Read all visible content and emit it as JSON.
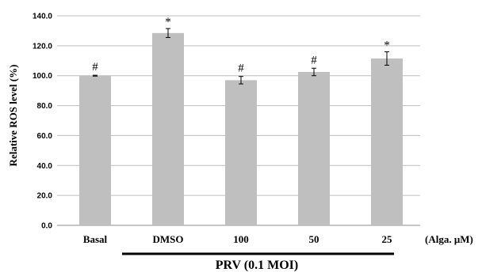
{
  "chart_data": {
    "type": "bar",
    "categories": [
      "Basal",
      "DMSO",
      "100",
      "50",
      "25"
    ],
    "values": [
      100.0,
      128.5,
      97.0,
      102.5,
      111.5
    ],
    "errors": [
      0.3,
      3.0,
      2.5,
      2.5,
      4.5
    ],
    "significance": [
      "#",
      "*",
      "#",
      "#",
      "*"
    ],
    "ylabel": "Relative ROS level (%)",
    "ylim": [
      0,
      140
    ],
    "yticks": [
      "0.0",
      "20.0",
      "40.0",
      "60.0",
      "80.0",
      "100.0",
      "120.0",
      "140.0"
    ],
    "x_unit_label": "(Alga. μM)",
    "group_label": "PRV (0.1 MOI)",
    "grid": "horizontal",
    "bar_color": "#bfbfbf",
    "grid_color": "#bdbdbd"
  }
}
